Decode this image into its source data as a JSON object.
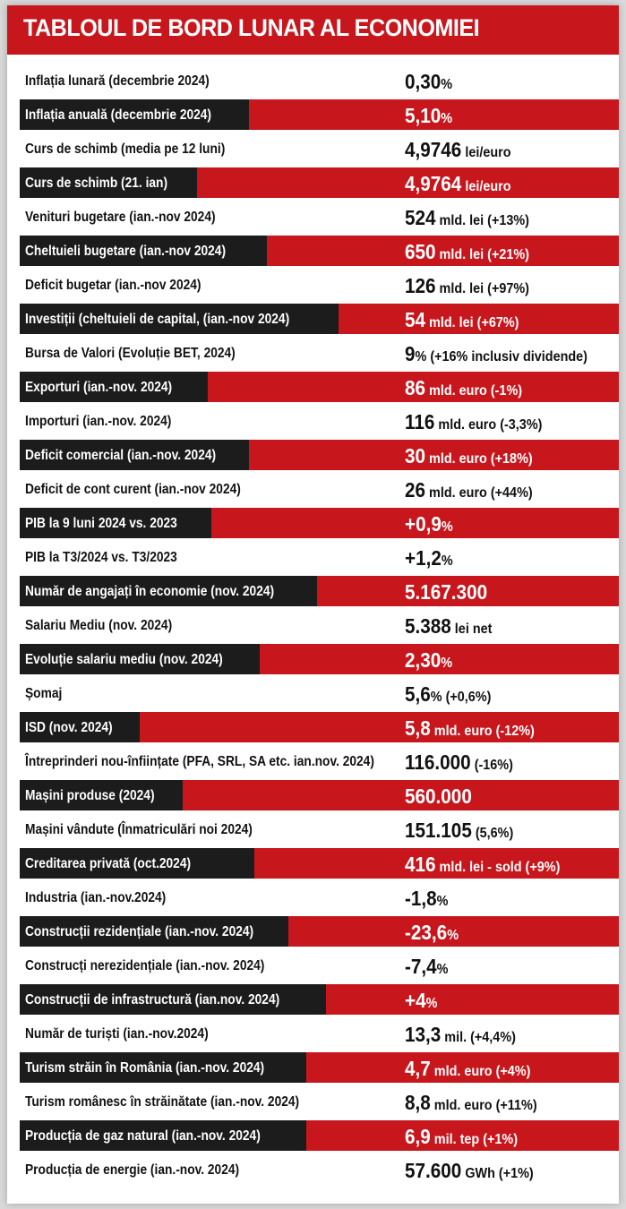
{
  "title": "TABLOUL DE BORD LUNAR AL ECONOMIEI",
  "colors": {
    "accent_red": "#c8161d",
    "dark_tab": "#1c1c1c",
    "text": "#111111"
  },
  "rows": [
    {
      "label": "Inflația lunară (decembrie 2024)",
      "value": "0,30",
      "suffix": "%"
    },
    {
      "label": "Inflația anuală (decembrie 2024)",
      "value": "5,10",
      "suffix": "%"
    },
    {
      "label": "Curs de schimb (media pe 12 luni)",
      "value": "4,9746",
      "suffix": " lei/euro"
    },
    {
      "label": "Curs de schimb  (21. ian)",
      "value": "4,9764",
      "suffix": " lei/euro"
    },
    {
      "label": "Venituri bugetare (ian.-nov 2024)",
      "value": "524",
      "suffix": " mld. lei (+13%)"
    },
    {
      "label": "Cheltuieli bugetare (ian.-nov 2024)",
      "value": "650",
      "suffix": " mld. lei (+21%)"
    },
    {
      "label": "Deficit bugetar (ian.-nov 2024)",
      "value": "126",
      "suffix": " mld. lei (+97%)"
    },
    {
      "label": "Investiții (cheltuieli de capital, (ian.-nov 2024)",
      "value": "54",
      "suffix": " mld. lei (+67%)"
    },
    {
      "label": "Bursa de Valori (Evoluție BET, 2024)",
      "value": "9",
      "suffix": "% (+16% inclusiv dividende)"
    },
    {
      "label": "Exporturi (ian.-nov. 2024)",
      "value": "86",
      "suffix": " mld. euro (-1%)"
    },
    {
      "label": "Importuri (ian.-nov. 2024)",
      "value": "116",
      "suffix": " mld. euro (-3,3%)"
    },
    {
      "label": "Deficit comercial (ian.-nov. 2024)",
      "value": "30",
      "suffix": " mld. euro (+18%)"
    },
    {
      "label": "Deficit de cont curent (ian.-nov 2024)",
      "value": "26",
      "suffix": " mld. euro (+44%)"
    },
    {
      "label": "PIB la 9 luni 2024 vs. 2023",
      "value": "+0,9",
      "suffix": "%"
    },
    {
      "label": "PIB la T3/2024 vs. T3/2023",
      "value": "+1,2",
      "suffix": "%"
    },
    {
      "label": "Număr de angajați în economie (nov. 2024)",
      "value": "5.167.300",
      "suffix": ""
    },
    {
      "label": "Salariu Mediu (nov. 2024)",
      "value": "5.388",
      "suffix": " lei net"
    },
    {
      "label": "Evoluție salariu mediu (nov. 2024)",
      "value": "2,30",
      "suffix": "%"
    },
    {
      "label": "Șomaj",
      "value": "5,6",
      "suffix": "% (+0,6%)"
    },
    {
      "label": "ISD (nov. 2024)",
      "value": "5,8",
      "suffix": " mld. euro (-12%)"
    },
    {
      "label": "Întreprinderi nou-înființate (PFA, SRL, SA etc. ian.nov. 2024)",
      "value": "116.000",
      "suffix": " (-16%)"
    },
    {
      "label": "Mașini produse (2024)",
      "value": "560.000",
      "suffix": ""
    },
    {
      "label": "Mașini vândute (Înmatriculări noi 2024)",
      "value": "151.105",
      "suffix": " (5,6%)"
    },
    {
      "label": "Creditarea privată  (oct.2024)",
      "value": "416",
      "suffix": " mld. lei - sold (+9%)"
    },
    {
      "label": "Industria (ian.-nov.2024)",
      "value": "-1,8",
      "suffix": "%"
    },
    {
      "label": "Construcții rezidențiale (ian.-nov. 2024)",
      "value": "-23,6",
      "suffix": "%"
    },
    {
      "label": "Construcți nerezidențiale (ian.-nov. 2024)",
      "value": "-7,4",
      "suffix": "%"
    },
    {
      "label": "Construcții de infrastructură (ian.nov. 2024)",
      "value": "+4",
      "suffix": "%"
    },
    {
      "label": "Număr de turiști (ian.-nov.2024)",
      "value": "13,3",
      "suffix": " mil. (+4,4%)"
    },
    {
      "label": "Turism străin în România (ian.-nov. 2024)",
      "value": "4,7",
      "suffix": " mld. euro (+4%)"
    },
    {
      "label": "Turism românesc în străinătate (ian.-nov. 2024)",
      "value": "8,8",
      "suffix": " mld. euro (+11%)"
    },
    {
      "label": "Producția de gaz natural (ian.-nov. 2024)",
      "value": "6,9",
      "suffix": " mil. tep (+1%)"
    },
    {
      "label": "Producția de energie (ian.-nov. 2024)",
      "value": "57.600",
      "suffix": " GWh (+1%)"
    }
  ]
}
